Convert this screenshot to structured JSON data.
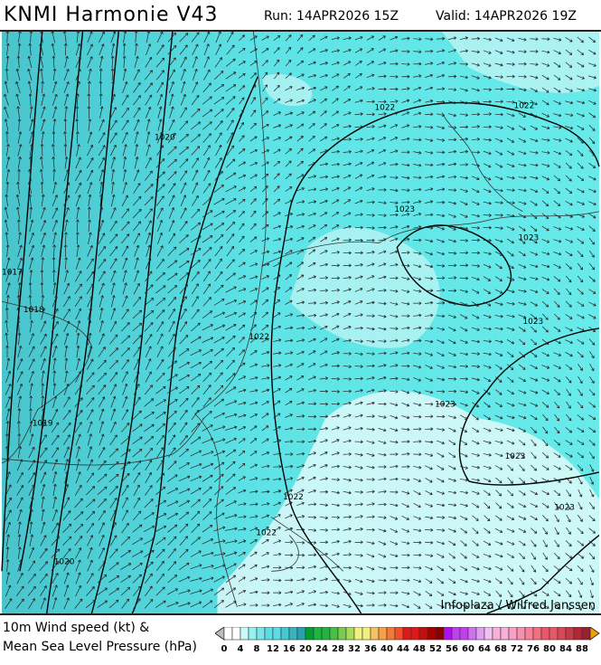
{
  "header": {
    "title": "KNMI Harmonie V43",
    "run": "Run: 14APR2026 15Z",
    "valid": "Valid: 14APR2026 19Z"
  },
  "map": {
    "isobar_labels": [
      "1020",
      "1018",
      "1019",
      "1017",
      "1020",
      "1022",
      "1022",
      "1022",
      "1022",
      "1023",
      "1023",
      "1023",
      "1023",
      "1023",
      "1023",
      "1022"
    ],
    "colors": {
      "sea_dark": "#3fb8c4",
      "sea": "#5ee4e6",
      "light": "#9ff4f4",
      "land_calm": "#ffffff",
      "isobar": "#000000"
    }
  },
  "credit": "Infoplaza / Wilfred Janssen",
  "legend": {
    "line1": "10m Wind speed (kt) &",
    "line2": "Mean Sea Level Pressure (hPa)",
    "ticks": [
      "0",
      "4",
      "8",
      "12",
      "16",
      "20",
      "24",
      "28",
      "32",
      "36",
      "40",
      "44",
      "48",
      "52",
      "56",
      "60",
      "64",
      "68",
      "72",
      "76",
      "80",
      "84",
      "88"
    ],
    "colors": [
      "#ffffff",
      "#c8fafa",
      "#96f2f2",
      "#78e6ea",
      "#5cdce4",
      "#46c8d2",
      "#38b4c0",
      "#28a0b0",
      "#00a030",
      "#22b440",
      "#48c048",
      "#78cc50",
      "#a8dc5c",
      "#f0f080",
      "#f8c060",
      "#f8a048",
      "#f47838",
      "#f05028",
      "#e01818",
      "#c80c0c",
      "#a80000",
      "#880000",
      "#b010f0",
      "#c040f0",
      "#d070f0",
      "#e0a0f0",
      "#f0c0f0",
      "#f8b0d8",
      "#f8a0c8",
      "#f890b0",
      "#f88098",
      "#f47080",
      "#e85868",
      "#d84858",
      "#c83848",
      "#b02838",
      "#982030"
    ]
  }
}
